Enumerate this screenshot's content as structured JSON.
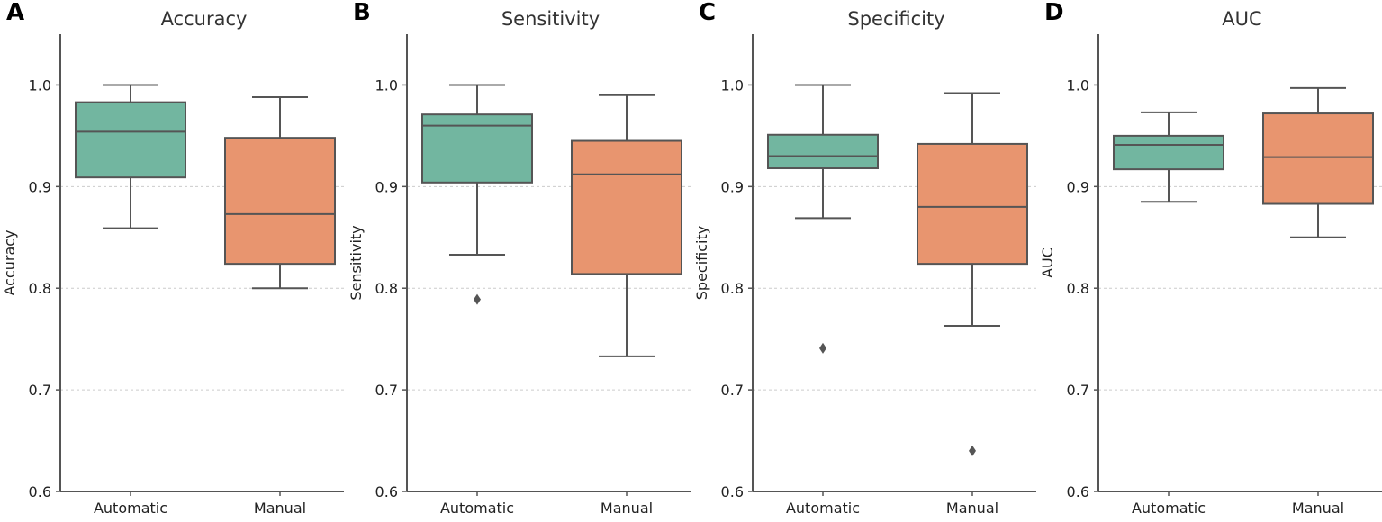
{
  "chart_data": [
    {
      "type": "box",
      "panel": "A",
      "title": "Accuracy",
      "ylabel": "Accuracy",
      "categories": [
        "Automatic",
        "Manual"
      ],
      "ylim": [
        0.6,
        1.05
      ],
      "yticks": [
        "0.6",
        "0.7",
        "0.8",
        "0.9",
        "1.0"
      ],
      "grid": "y-dashed",
      "boxes": [
        {
          "whisker_low": 0.859,
          "q1": 0.909,
          "median": 0.954,
          "q3": 0.983,
          "whisker_high": 1.0,
          "outliers": []
        },
        {
          "whisker_low": 0.8,
          "q1": 0.824,
          "median": 0.873,
          "q3": 0.948,
          "whisker_high": 0.988,
          "outliers": []
        }
      ]
    },
    {
      "type": "box",
      "panel": "B",
      "title": "Sensitivity",
      "ylabel": "Sensitivity",
      "categories": [
        "Automatic",
        "Manual"
      ],
      "ylim": [
        0.6,
        1.05
      ],
      "yticks": [
        "0.6",
        "0.7",
        "0.8",
        "0.9",
        "1.0"
      ],
      "grid": "y-dashed",
      "boxes": [
        {
          "whisker_low": 0.833,
          "q1": 0.904,
          "median": 0.96,
          "q3": 0.971,
          "whisker_high": 1.0,
          "outliers": [
            0.789
          ]
        },
        {
          "whisker_low": 0.733,
          "q1": 0.814,
          "median": 0.912,
          "q3": 0.945,
          "whisker_high": 0.99,
          "outliers": []
        }
      ]
    },
    {
      "type": "box",
      "panel": "C",
      "title": "Specificity",
      "ylabel": "Specificity",
      "categories": [
        "Automatic",
        "Manual"
      ],
      "ylim": [
        0.6,
        1.05
      ],
      "yticks": [
        "0.6",
        "0.7",
        "0.8",
        "0.9",
        "1.0"
      ],
      "grid": "y-dashed",
      "boxes": [
        {
          "whisker_low": 0.869,
          "q1": 0.918,
          "median": 0.93,
          "q3": 0.951,
          "whisker_high": 1.0,
          "outliers": [
            0.741
          ]
        },
        {
          "whisker_low": 0.763,
          "q1": 0.824,
          "median": 0.88,
          "q3": 0.942,
          "whisker_high": 0.992,
          "outliers": [
            0.64
          ]
        }
      ]
    },
    {
      "type": "box",
      "panel": "D",
      "title": "AUC",
      "ylabel": "AUC",
      "categories": [
        "Automatic",
        "Manual"
      ],
      "ylim": [
        0.6,
        1.05
      ],
      "yticks": [
        "0.6",
        "0.7",
        "0.8",
        "0.9",
        "1.0"
      ],
      "grid": "y-dashed",
      "boxes": [
        {
          "whisker_low": 0.885,
          "q1": 0.917,
          "median": 0.941,
          "q3": 0.95,
          "whisker_high": 0.973,
          "outliers": []
        },
        {
          "whisker_low": 0.85,
          "q1": 0.883,
          "median": 0.929,
          "q3": 0.972,
          "whisker_high": 0.997,
          "outliers": []
        }
      ]
    }
  ],
  "colors": {
    "Automatic": "#72b6a0",
    "Manual": "#e8956f",
    "line": "#555555"
  }
}
